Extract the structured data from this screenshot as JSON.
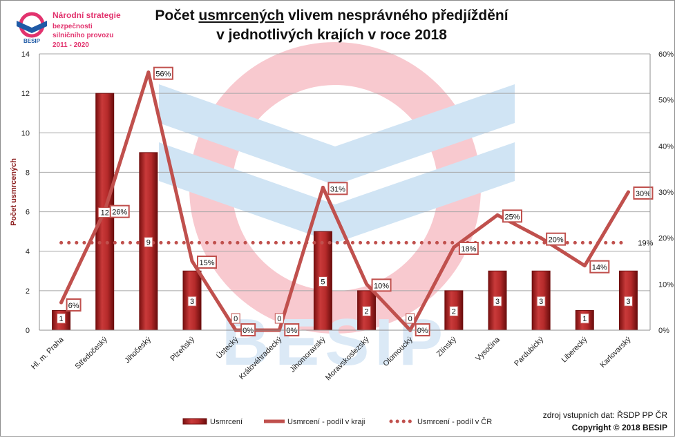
{
  "logo": {
    "brand": "BESIP",
    "line1": "Národní strategie",
    "line2": "bezpečnosti",
    "line3": "silničního provozu",
    "line4": "2011 - 2020"
  },
  "watermark_text": "BESIP",
  "title_parts": {
    "p1": "Počet ",
    "p2": "usmrcených",
    "p3": " vlivem nesprávného předjíždění",
    "line2": "v jednotlivých krajích v roce 2018"
  },
  "source_note": "zdroj vstupních dat: ŘSDP PP ČR",
  "copyright": "Copyright © 2018  BESIP",
  "colors": {
    "bar": "#b22222",
    "bar_dark": "#6e0f0f",
    "line": "#c0504d",
    "grid": "#a6a6a6",
    "watermark_red": "#f7c6cc",
    "watermark_blue": "#cfe3f3"
  },
  "chart_data": {
    "type": "bar",
    "title": "Počet usmrcených vlivem nesprávného předjíždění v jednotlivých krajích v roce 2018",
    "ylabel": "Počet usmrcených",
    "y2label": "",
    "ylim": [
      0,
      14
    ],
    "yticks": [
      0,
      2,
      4,
      6,
      8,
      10,
      12,
      14
    ],
    "y2lim": [
      0,
      60
    ],
    "y2ticks": [
      "0%",
      "10%",
      "20%",
      "30%",
      "40%",
      "50%",
      "60%"
    ],
    "grid": true,
    "legend_position": "bottom",
    "categories": [
      "Hl. m. Praha",
      "Středočeský",
      "Jihočeský",
      "Plzeňský",
      "Ústecký",
      "Královéhradecký",
      "Jihomoravský",
      "Moravskoslezský",
      "Olomoucký",
      "Zlínský",
      "Vysočina",
      "Pardubický",
      "Liberecký",
      "Karlovarský"
    ],
    "series": [
      {
        "name": "Usmrcení",
        "type": "bar",
        "axis": "left",
        "values": [
          1,
          12,
          9,
          3,
          0,
          0,
          5,
          2,
          0,
          2,
          3,
          3,
          1,
          3
        ],
        "labels": [
          "1",
          "12",
          "9",
          "3",
          "0",
          "0",
          "5",
          "2",
          "0",
          "2",
          "3",
          "3",
          "1",
          "3"
        ]
      },
      {
        "name": "Usmrcení - podíl v kraji",
        "type": "line",
        "axis": "right",
        "values": [
          6,
          26,
          56,
          15,
          0,
          0,
          31,
          10,
          0,
          18,
          25,
          20,
          14,
          30
        ],
        "labels": [
          "6%",
          "26%",
          "56%",
          "15%",
          "0%",
          "0%",
          "31%",
          "10%",
          "0%",
          "18%",
          "25%",
          "20%",
          "14%",
          "30%"
        ]
      },
      {
        "name": "Usmrcení - podíl v ČR",
        "type": "line-dotted",
        "axis": "right",
        "values": [
          19,
          19,
          19,
          19,
          19,
          19,
          19,
          19,
          19,
          19,
          19,
          19,
          19,
          19
        ],
        "end_label": "19%"
      }
    ]
  }
}
